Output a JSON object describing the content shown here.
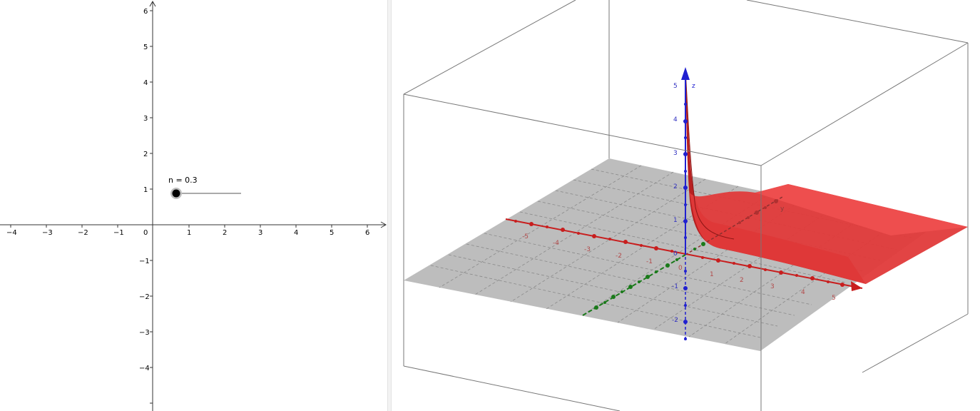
{
  "graphics2d": {
    "x_axis_ticks": [
      "−4",
      "−3",
      "−2",
      "−1",
      "0",
      "1",
      "2",
      "3",
      "4",
      "5",
      "6"
    ],
    "y_axis_ticks_pos": [
      "1",
      "2",
      "3",
      "4",
      "5",
      "6"
    ],
    "y_axis_ticks_neg": [
      "−1",
      "−2",
      "−3",
      "−4"
    ],
    "slider": {
      "label": "n = 0.3",
      "value": 0.3,
      "min": 0,
      "max": 2
    }
  },
  "graphics3d": {
    "x_axis_ticks": [
      "-5",
      "-4",
      "-3",
      "-2",
      "-1",
      "0",
      "1",
      "2",
      "3",
      "4",
      "5"
    ],
    "y_axis_label": "y",
    "z_axis_label": "z",
    "z_axis_ticks": [
      "5",
      "4",
      "3",
      "2",
      "1",
      "0",
      "-1",
      "-2"
    ],
    "colors": {
      "x_axis": "#c81e1e",
      "y_axis": "#1a7a1a",
      "z_axis": "#2020d0",
      "plane": "#bdbdbd",
      "surface": "#e03030"
    }
  }
}
